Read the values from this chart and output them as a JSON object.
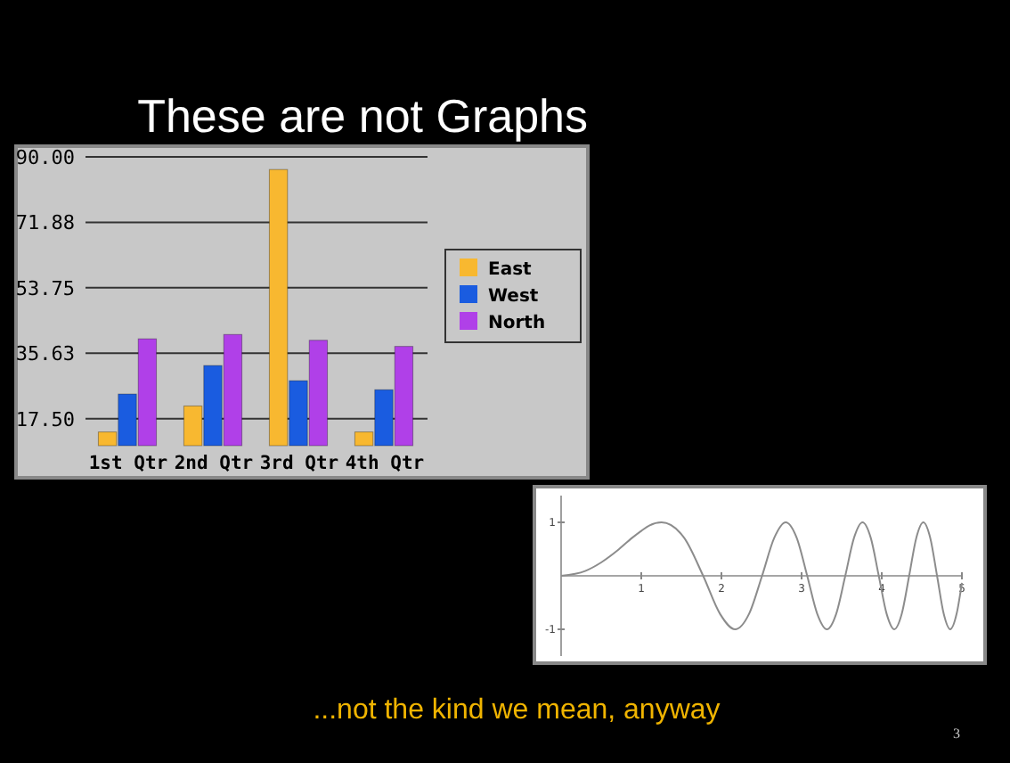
{
  "chart_data": [
    {
      "type": "bar",
      "title": "These are not Graphs",
      "categories": [
        "1st Qtr",
        "2nd Qtr",
        "3rd Qtr",
        "4th Qtr"
      ],
      "series": [
        {
          "name": "East",
          "color": "#f8b830",
          "values": [
            13.8,
            21,
            86.5,
            13.8
          ]
        },
        {
          "name": "West",
          "color": "#1a5ce0",
          "values": [
            24.3,
            32.2,
            28,
            25.5
          ]
        },
        {
          "name": "North",
          "color": "#b040e8",
          "values": [
            39.6,
            40.8,
            39.2,
            37.5
          ]
        }
      ],
      "ylim": [
        10,
        90
      ],
      "yticks": [
        {
          "value": 17.5,
          "label": "17.50"
        },
        {
          "value": 35.63,
          "label": "35.63"
        },
        {
          "value": 53.75,
          "label": "53.75"
        },
        {
          "value": 71.88,
          "label": "71.88"
        },
        {
          "value": 90,
          "label": "90.00"
        }
      ],
      "grid": "y",
      "legend": "right"
    },
    {
      "type": "line",
      "x": [
        0,
        0.3,
        0.5,
        0.7,
        0.886,
        1,
        1.1,
        1.253,
        1.535,
        1.772,
        1.982,
        2.171,
        2.345,
        2.507,
        2.659,
        2.802,
        2.939,
        3.07,
        3.195,
        3.316,
        3.432,
        3.545,
        3.654,
        3.76,
        3.863,
        3.963,
        4.061,
        4.157,
        4.25,
        4.342,
        4.431,
        4.519,
        4.605,
        4.69,
        4.773,
        4.854,
        4.934,
        5
      ],
      "series": [
        {
          "color": "#8c8c8c",
          "values": [
            0,
            0.09,
            0.25,
            0.47,
            0.71,
            0.84,
            0.94,
            1,
            0.71,
            0,
            -0.71,
            -1,
            -0.71,
            0,
            0.71,
            1,
            0.71,
            0,
            -0.71,
            -1,
            -0.71,
            0,
            0.71,
            1,
            0.71,
            0,
            -0.71,
            -1,
            -0.71,
            0,
            0.71,
            1,
            0.71,
            0,
            -0.71,
            -1,
            -0.71,
            -0.13
          ]
        }
      ],
      "xlim": [
        0,
        5
      ],
      "ylim": [
        -1.5,
        1.5
      ],
      "xticks": [
        1,
        2,
        3,
        4,
        5
      ],
      "yticks": [
        -1,
        1
      ],
      "grid": false,
      "marker": "none",
      "line_style": "solid",
      "annotations": [
        "...not the kind we mean, anyway",
        "3"
      ]
    }
  ]
}
